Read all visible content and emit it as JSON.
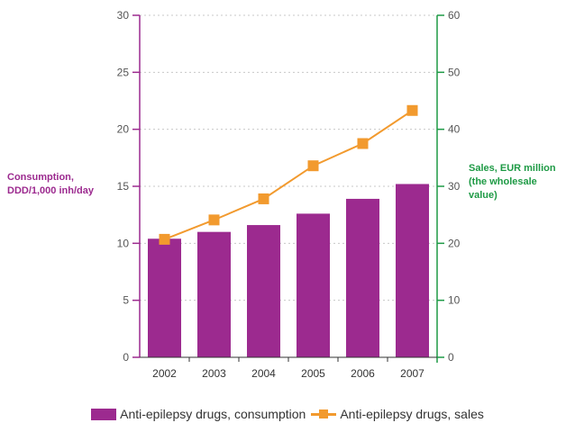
{
  "chart_data": {
    "type": "bar",
    "categories": [
      "2002",
      "2003",
      "2004",
      "2005",
      "2006",
      "2007"
    ],
    "series": [
      {
        "name": "Anti-epilepsy drugs, consumption",
        "type": "bar",
        "axis": "left",
        "color": "#9c2a8f",
        "values": [
          10.4,
          11.0,
          11.6,
          12.6,
          13.9,
          15.2
        ]
      },
      {
        "name": "Anti-epilepsy drugs, sales",
        "type": "line",
        "axis": "right",
        "color": "#f29a2e",
        "values": [
          20.7,
          24.1,
          27.8,
          33.6,
          37.5,
          43.3
        ]
      }
    ],
    "y_left": {
      "label": "Consumption,\nDDD/1,000 inh/day",
      "min": 0,
      "max": 30,
      "ticks": [
        0,
        5,
        10,
        15,
        20,
        25,
        30
      ],
      "color": "#9c2a8f"
    },
    "y_right": {
      "label": "Sales, EUR million\n(the wholesale\nvalue)",
      "min": 0,
      "max": 60,
      "ticks": [
        0,
        10,
        20,
        30,
        40,
        50,
        60
      ],
      "color": "#1e9a45"
    },
    "grid": true,
    "legend_position": "bottom"
  }
}
